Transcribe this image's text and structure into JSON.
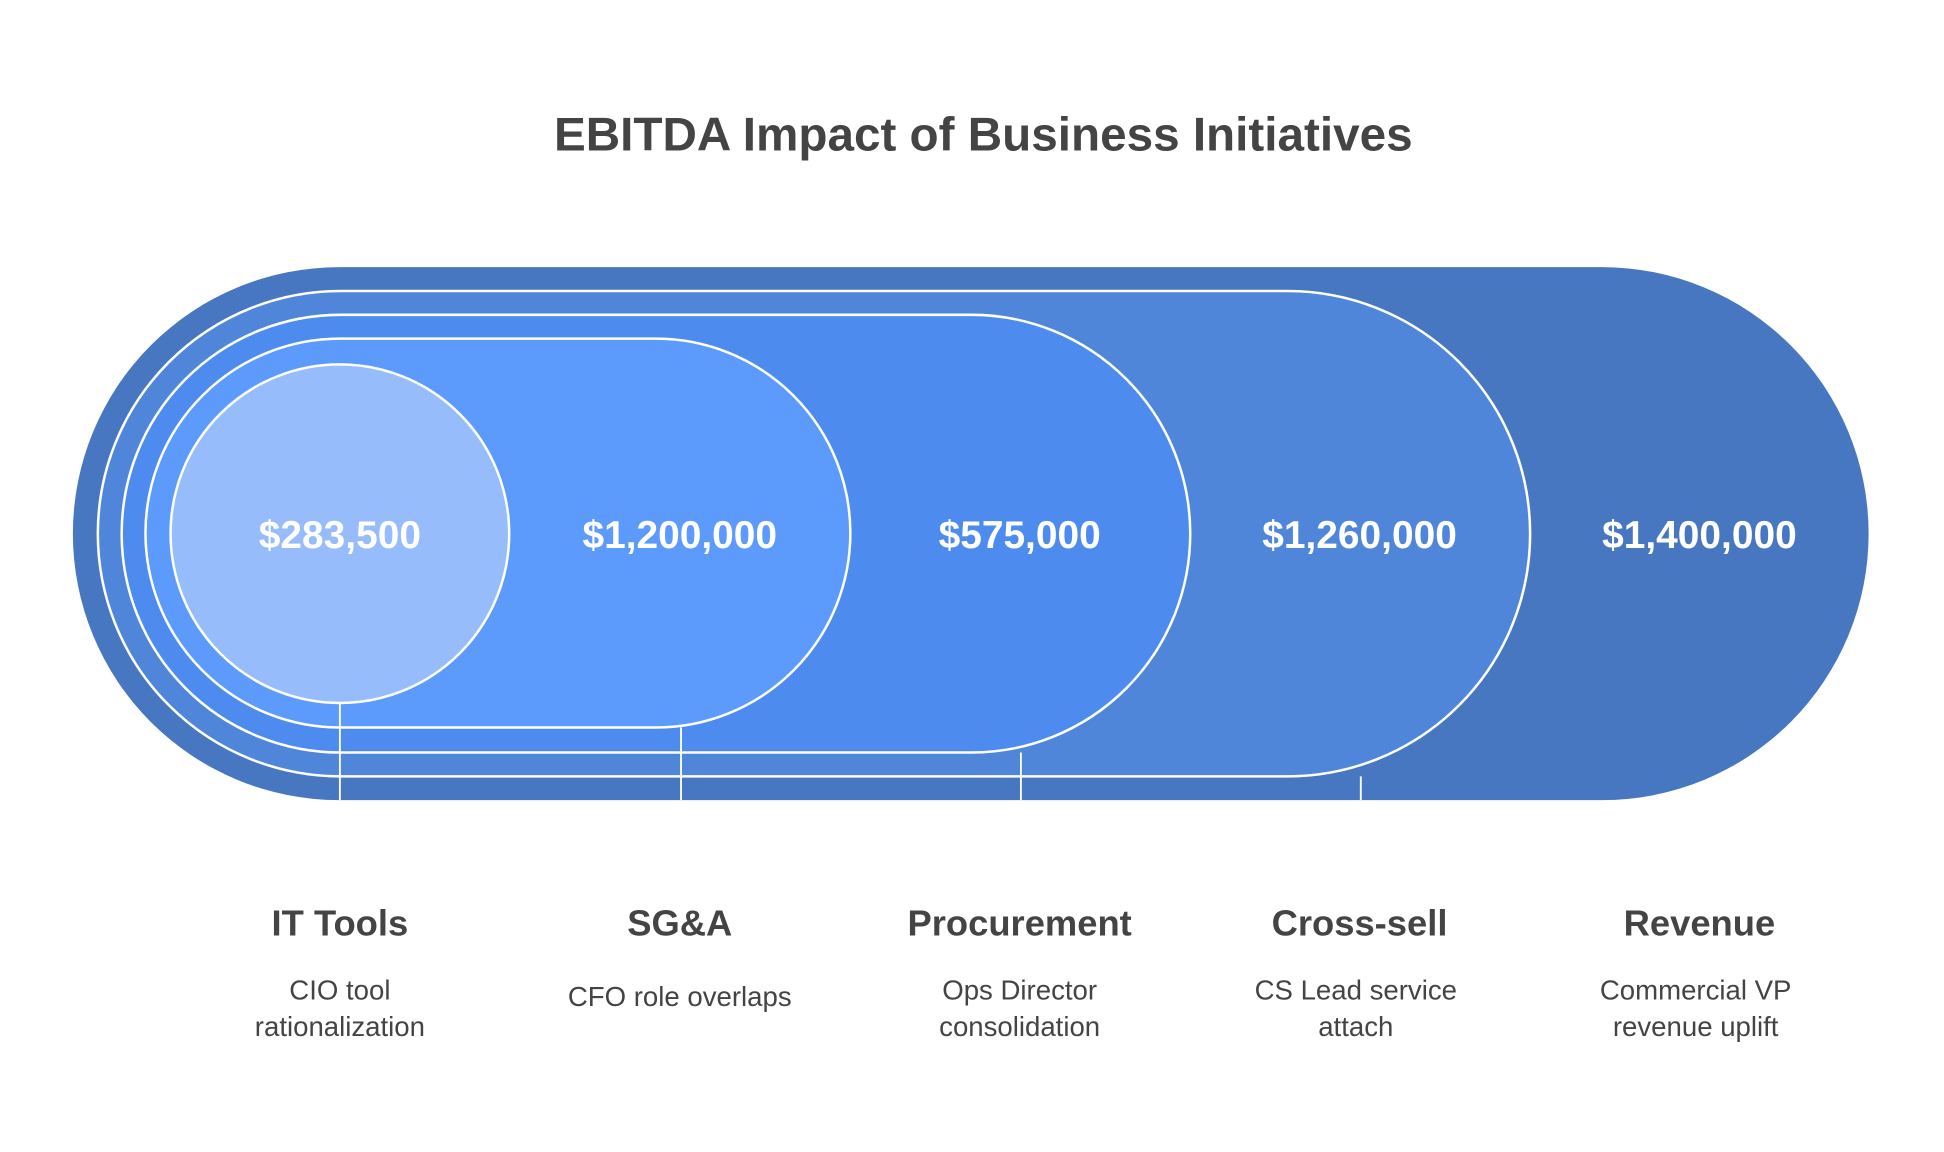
{
  "title": "EBITDA Impact of Business Initiatives",
  "colors": {
    "revenue": "#4877C2",
    "cross_sell": "#4F86DA",
    "procurement": "#4E8BEE",
    "sga": "#5C9AFC",
    "it_tools": "#97BCFC",
    "text": "#444444"
  },
  "items": [
    {
      "label": "IT Tools",
      "value": "$283,500",
      "description": [
        "CIO tool",
        "rationalization"
      ]
    },
    {
      "label": "SG&A",
      "value": "$1,200,000",
      "description": [
        "CFO role overlaps"
      ]
    },
    {
      "label": "Procurement",
      "value": "$575,000",
      "description": [
        "Ops Director",
        "consolidation"
      ]
    },
    {
      "label": "Cross-sell",
      "value": "$1,260,000",
      "description": [
        "CS Lead service",
        "attach"
      ]
    },
    {
      "label": "Revenue",
      "value": "$1,400,000",
      "description": [
        "Commercial VP",
        "revenue uplift"
      ]
    }
  ]
}
